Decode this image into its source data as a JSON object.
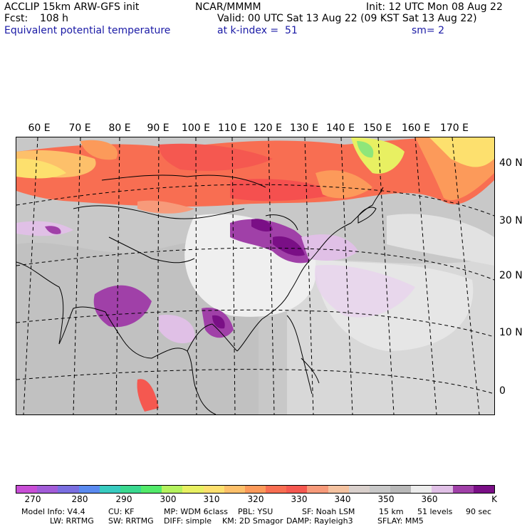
{
  "header": {
    "model": "ACCLIP 15km ARW-GFS init",
    "center": "NCAR/MMMM",
    "init": "Init: 12 UTC Mon 08 Aug 22",
    "fcst_label": "Fcst:",
    "fcst_value": "108 h",
    "valid": "Valid: 00 UTC Sat 13 Aug 22 (09 KST Sat 13 Aug 22)",
    "field": "Equivalent potential temperature",
    "level": "at k-index =  51",
    "smoothing": "sm= 2"
  },
  "map": {
    "lon_labels": [
      "60 E",
      "70 E",
      "80 E",
      "90 E",
      "100 E",
      "110 E",
      "120 E",
      "130 E",
      "140 E",
      "150 E",
      "160 E",
      "170 E"
    ],
    "lat_labels": [
      "40 N",
      "30 N",
      "20 N",
      "10 N",
      "0"
    ]
  },
  "colorbar": {
    "colors": [
      "#c84ed6",
      "#a25cd8",
      "#7a6ee0",
      "#5a8af0",
      "#38cbc0",
      "#3ad88f",
      "#52ea6a",
      "#b4f25e",
      "#e8f062",
      "#fde06e",
      "#fdc06a",
      "#fc9a5a",
      "#f86e52",
      "#f55850",
      "#f79a7a",
      "#f4c2a0",
      "#d9d0cc",
      "#c8c8c8",
      "#b8b8b8",
      "#ececec",
      "#e0c0e6",
      "#a040a8",
      "#7a0f86"
    ],
    "ticks": [
      "270",
      "280",
      "290",
      "300",
      "310",
      "320",
      "330",
      "340",
      "350",
      "360"
    ],
    "unit": "K"
  },
  "footer": {
    "line1": [
      "Model Info: V4.4",
      "CU: KF",
      "MP: WDM 6class",
      "PBL: YSU",
      "SF: Noah LSM",
      "15 km",
      "51 levels",
      "90 sec"
    ],
    "line2": [
      "LW: RRTMG",
      "SW: RRTMG",
      "DIFF: simple",
      "KM: 2D Smagor",
      "DAMP: Rayleigh3",
      "SFLAY: MM5"
    ]
  }
}
